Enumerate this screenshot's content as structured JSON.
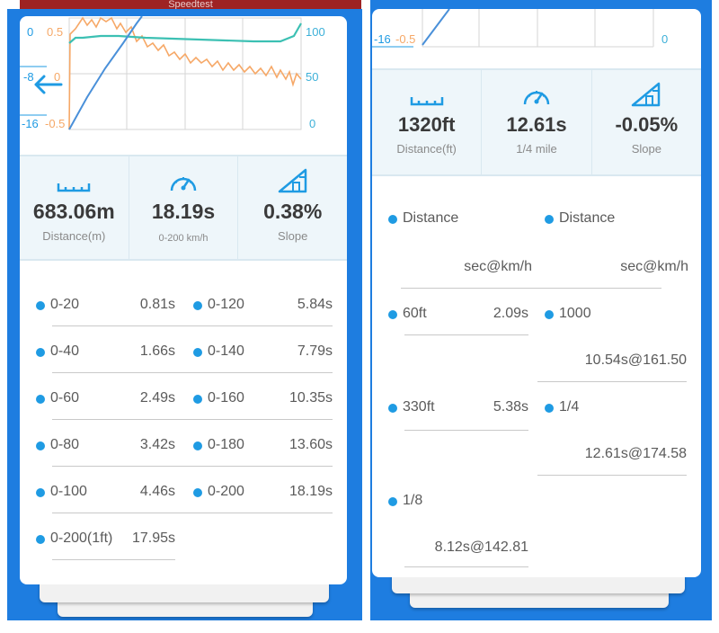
{
  "top_bar_text": "Speedtest",
  "left": {
    "chart": {
      "left_axis_outer": [
        "0",
        "-8",
        "-16"
      ],
      "left_axis_inner": [
        "0.5",
        "0",
        "-0.5"
      ],
      "right_axis": [
        "100",
        "50",
        "0"
      ]
    },
    "stats": [
      {
        "value": "683.06m",
        "label": "Distance(m)",
        "icon": "ruler-icon"
      },
      {
        "value": "18.19s",
        "label": "0-200 km/h",
        "icon": "speedometer-icon"
      },
      {
        "value": "0.38%",
        "label": "Slope",
        "icon": "slope-icon"
      }
    ],
    "rows": [
      {
        "k": "0-20",
        "v": "0.81s"
      },
      {
        "k": "0-120",
        "v": "5.84s"
      },
      {
        "k": "0-40",
        "v": "1.66s"
      },
      {
        "k": "0-140",
        "v": "7.79s"
      },
      {
        "k": "0-60",
        "v": "2.49s"
      },
      {
        "k": "0-160",
        "v": "10.35s"
      },
      {
        "k": "0-80",
        "v": "3.42s"
      },
      {
        "k": "0-180",
        "v": "13.60s"
      },
      {
        "k": "0-100",
        "v": "4.46s"
      },
      {
        "k": "0-200",
        "v": "18.19s"
      },
      {
        "k": "0-200(1ft)",
        "v": "17.95s"
      }
    ]
  },
  "right": {
    "chart": {
      "left_axis_outer": [
        "-16"
      ],
      "left_axis_inner": [
        "-0.5"
      ],
      "right_axis": [
        "0"
      ]
    },
    "stats": [
      {
        "value": "1320ft",
        "label": "Distance(ft)",
        "icon": "ruler-icon"
      },
      {
        "value": "12.61s",
        "label": "1/4 mile",
        "icon": "speedometer-icon"
      },
      {
        "value": "-0.05%",
        "label": "Slope",
        "icon": "slope-icon"
      }
    ],
    "headers": [
      {
        "label": "Distance",
        "unit": "sec@km/h"
      },
      {
        "label": "Distance",
        "unit": "sec@km/h"
      }
    ],
    "rows": [
      {
        "k": "60ft",
        "v": "2.09s"
      },
      {
        "k": "1000",
        "v": "10.54s@161.50"
      },
      {
        "k": "330ft",
        "v": "5.38s"
      },
      {
        "k": "1/4",
        "v": "12.61s@174.58"
      },
      {
        "k": "1/8",
        "v": "8.12s@142.81"
      }
    ]
  },
  "colors": {
    "background_blue": "#1e7de0",
    "accent_blue": "#1f9be3",
    "teal_line": "#3cc0b3",
    "orange_line": "#f6a867",
    "blue_line": "#4a90d9"
  }
}
